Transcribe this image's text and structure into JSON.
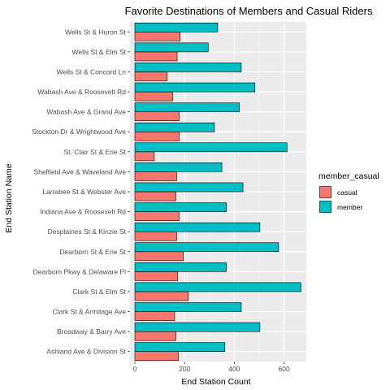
{
  "chart_data": {
    "type": "bar",
    "orientation": "horizontal",
    "title": "Favorite Destinations of Members and Casual Riders",
    "xlabel": "End Station Count",
    "ylabel": "End Station Name",
    "xlim": [
      0,
      670
    ],
    "x_ticks": [
      0,
      200,
      400,
      600
    ],
    "grid": true,
    "legend_title": "member_casual",
    "legend_position": "right",
    "categories": [
      "Wells St & Huron St",
      "Wells St & Elm St",
      "Wells St & Concord Ln",
      "Wabash Ave & Roosevelt Rd",
      "Wabash Ave & Grand Ave",
      "Stockton Dr & Wrightwood Ave",
      "St. Clair St & Erie St",
      "Sheffield Ave & Waveland Ave",
      "Larrabee St & Webster Ave",
      "Indiana Ave & Roosevelt Rd",
      "Desplaines St & Kinzie St",
      "Dearborn St & Erie St",
      "Dearborn Pkwy & Delaware Pl",
      "Clark St & Elm St",
      "Clark St & Armitage Ave",
      "Broadway & Barry Ave",
      "Ashland Ave & Division St"
    ],
    "series": [
      {
        "name": "casual",
        "color": "#F8766D",
        "values": [
          182,
          170,
          130,
          152,
          178,
          178,
          78,
          168,
          165,
          178,
          168,
          195,
          172,
          215,
          160,
          165,
          175
        ]
      },
      {
        "name": "member",
        "color": "#00BFC4",
        "values": [
          333,
          295,
          428,
          483,
          420,
          320,
          612,
          350,
          435,
          368,
          503,
          578,
          368,
          668,
          428,
          503,
          362
        ]
      }
    ]
  }
}
